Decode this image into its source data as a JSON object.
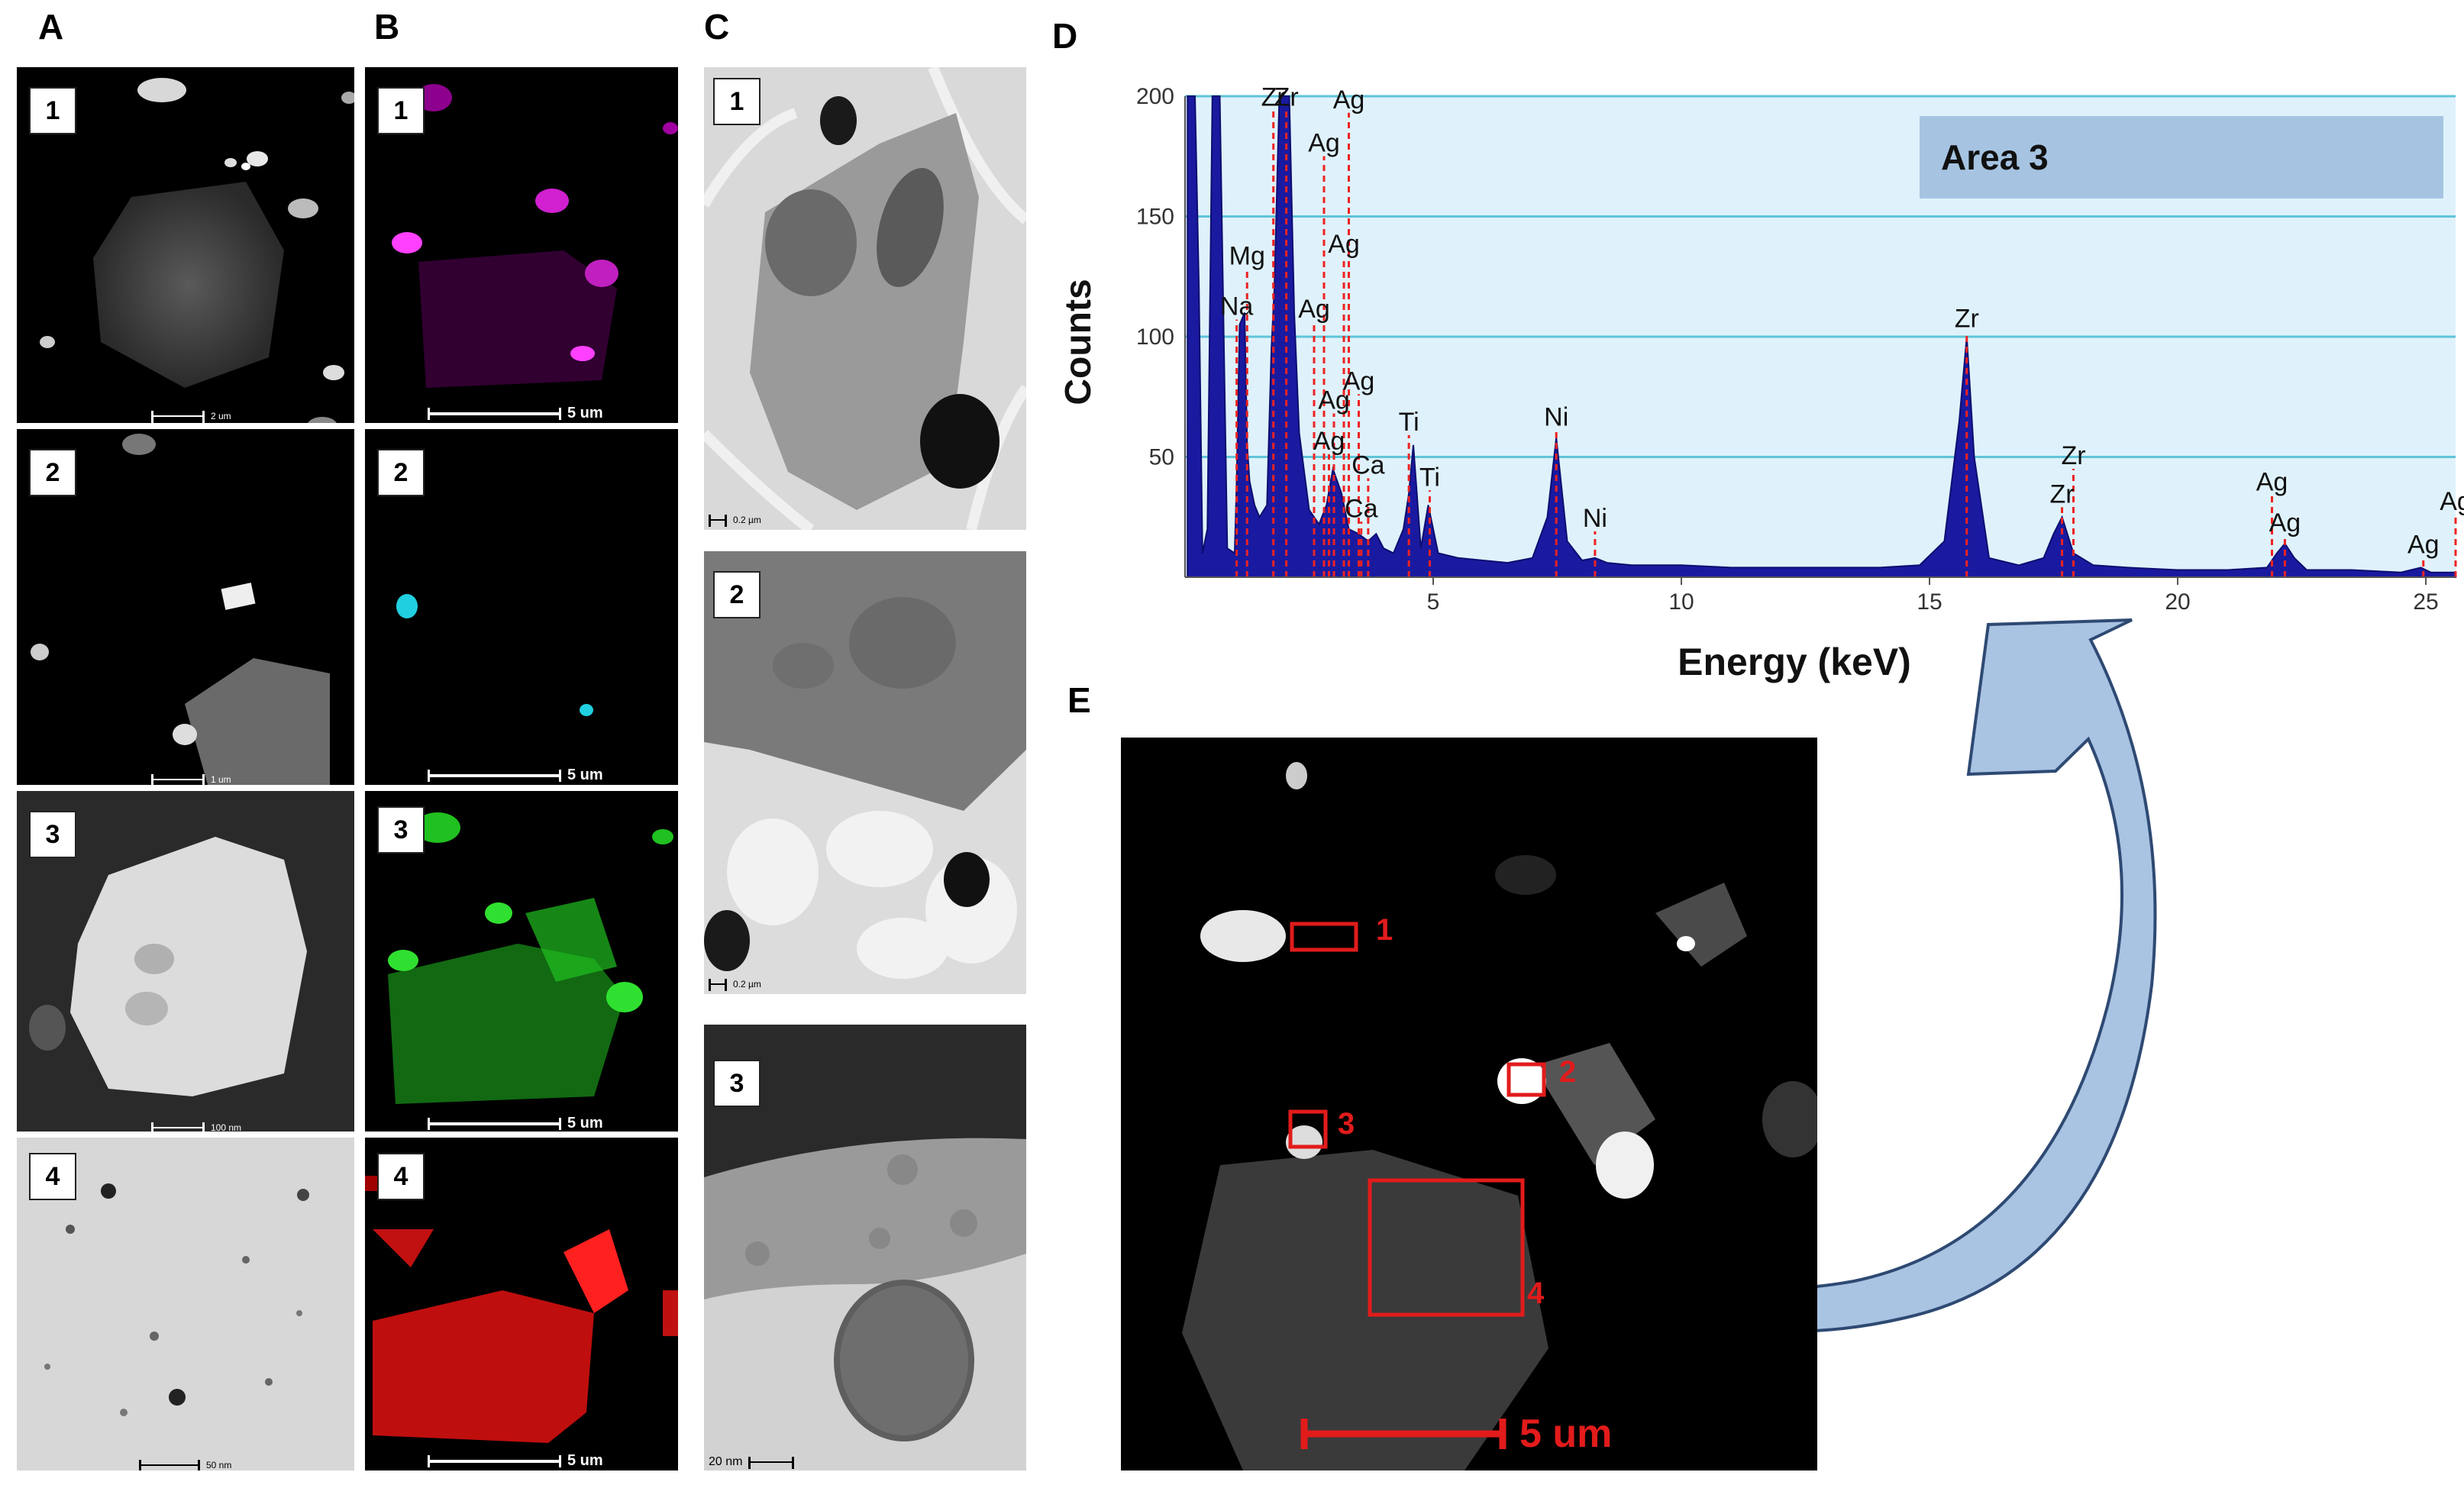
{
  "figure": {
    "letters": {
      "a": "A",
      "b": "B",
      "c": "C",
      "d": "D",
      "e": "E"
    },
    "panel_numbers": [
      "1",
      "2",
      "3",
      "4"
    ],
    "scalebars": {
      "a1": "2 um",
      "a2": "1 um",
      "a3": "100 nm",
      "a4": "50 nm",
      "b1": "5 um",
      "b2": "5 um",
      "b3": "5 um",
      "b4": "5 um",
      "c1": "0.2 µm",
      "c2": "0.2 µm",
      "c3": "20 nm",
      "e": "5 um"
    },
    "e_regions": [
      "1",
      "2",
      "3",
      "4"
    ]
  },
  "colors": {
    "b1_map": "#b000b0",
    "b2_map": "#20d0e0",
    "b3_map": "#20c020",
    "b4_map": "#e01010",
    "spectrum_fill": "#1a1aa0",
    "plot_bg": "#dff2fb",
    "arrow_fill": "#a9c3e3",
    "region_box": "#e21b1b"
  },
  "chart_data": {
    "type": "line",
    "title": "",
    "xlabel": "Energy (keV)",
    "ylabel": "Counts",
    "annotation": "Area 3",
    "xlim": [
      0,
      25.6
    ],
    "ylim": [
      0,
      200
    ],
    "xticks": [
      5,
      10,
      15,
      20,
      25
    ],
    "yticks": [
      50,
      100,
      150,
      200
    ],
    "grid": true,
    "x": [
      0.05,
      0.2,
      0.28,
      0.35,
      0.45,
      0.55,
      0.7,
      0.85,
      1.0,
      1.04,
      1.1,
      1.2,
      1.25,
      1.3,
      1.4,
      1.5,
      1.65,
      1.74,
      1.8,
      1.9,
      2.0,
      2.04,
      2.1,
      2.2,
      2.3,
      2.5,
      2.7,
      2.85,
      2.98,
      3.15,
      3.3,
      3.5,
      3.69,
      3.85,
      4.0,
      4.2,
      4.4,
      4.51,
      4.6,
      4.75,
      4.9,
      5.1,
      5.5,
      6.0,
      6.5,
      7.0,
      7.3,
      7.48,
      7.7,
      8.0,
      8.26,
      8.5,
      9.0,
      10.0,
      11.0,
      12.0,
      13.0,
      14.0,
      14.8,
      15.3,
      15.6,
      15.75,
      15.9,
      16.2,
      16.8,
      17.3,
      17.5,
      17.67,
      17.9,
      18.3,
      19.0,
      20.0,
      21.0,
      21.8,
      22.0,
      22.16,
      22.35,
      22.6,
      23.5,
      24.5,
      24.9,
      25.1,
      25.3,
      25.6
    ],
    "y": [
      200,
      200,
      120,
      10,
      20,
      200,
      200,
      12,
      10,
      40,
      105,
      110,
      55,
      40,
      30,
      25,
      30,
      95,
      120,
      200,
      200,
      200,
      200,
      110,
      60,
      28,
      22,
      30,
      45,
      35,
      20,
      18,
      15,
      18,
      12,
      10,
      20,
      35,
      55,
      12,
      30,
      10,
      8,
      7,
      6,
      8,
      25,
      58,
      15,
      7,
      8,
      6,
      5,
      5,
      4,
      4,
      4,
      4,
      5,
      15,
      65,
      100,
      50,
      8,
      5,
      8,
      18,
      25,
      10,
      5,
      4,
      3,
      3,
      4,
      10,
      14,
      8,
      3,
      3,
      2,
      4,
      2,
      2,
      2
    ],
    "peak_labels": [
      {
        "label": "Na",
        "x": 1.04,
        "y": 109
      },
      {
        "label": "Mg",
        "x": 1.25,
        "y": 130
      },
      {
        "label": "Zr",
        "x": 1.78,
        "y": 196
      },
      {
        "label": "Zr",
        "x": 2.04,
        "y": 196
      },
      {
        "label": "Ag",
        "x": 2.8,
        "y": 177
      },
      {
        "label": "Ag",
        "x": 3.3,
        "y": 195
      },
      {
        "label": "Ag",
        "x": 2.6,
        "y": 108
      },
      {
        "label": "Ag",
        "x": 3.2,
        "y": 135
      },
      {
        "label": "Ag",
        "x": 3.0,
        "y": 70
      },
      {
        "label": "Ag",
        "x": 3.5,
        "y": 78
      },
      {
        "label": "Ag",
        "x": 2.9,
        "y": 53
      },
      {
        "label": "Ca",
        "x": 3.69,
        "y": 43
      },
      {
        "label": "Ca",
        "x": 3.55,
        "y": 25
      },
      {
        "label": "Ti",
        "x": 4.51,
        "y": 61
      },
      {
        "label": "Ti",
        "x": 4.93,
        "y": 38
      },
      {
        "label": "Ni",
        "x": 7.48,
        "y": 63
      },
      {
        "label": "Ni",
        "x": 8.26,
        "y": 21
      },
      {
        "label": "Zr",
        "x": 15.75,
        "y": 104
      },
      {
        "label": "Zr",
        "x": 17.67,
        "y": 31
      },
      {
        "label": "Zr",
        "x": 17.9,
        "y": 47
      },
      {
        "label": "Ag",
        "x": 21.9,
        "y": 36
      },
      {
        "label": "Ag",
        "x": 22.16,
        "y": 19
      },
      {
        "label": "Ag",
        "x": 24.95,
        "y": 10
      },
      {
        "label": "Ag",
        "x": 25.6,
        "y": 28
      }
    ]
  }
}
